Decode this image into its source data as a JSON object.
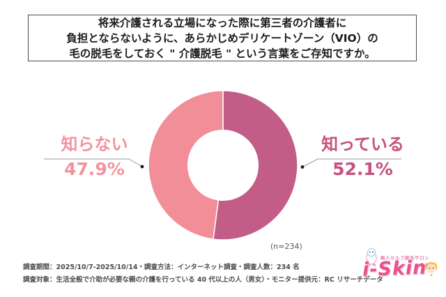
{
  "title": {
    "line1": "将来介護される立場になった際に第三者の介護者に",
    "line2": "負担とならないように、あらかじめデリケートゾーン（VIO）の",
    "line3": "毛の脱毛をしておく \" 介護脱毛 \" という言葉をご存知ですか。"
  },
  "chart_data": {
    "type": "pie",
    "subtype": "donut",
    "title": "将来介護される立場になった際に第三者の介護者に負担とならないように、あらかじめデリケートゾーン（VIO）の毛の脱毛をしておく\"介護脱毛\"という言葉をご存知ですか。",
    "categories": [
      "知っている",
      "知らない"
    ],
    "values": [
      52.1,
      47.9
    ],
    "unit": "%",
    "colors": [
      "#c25d88",
      "#f28e98"
    ],
    "label_colors": [
      "#c4517f",
      "#f2939c"
    ],
    "start_angle_deg": 0,
    "direction": "clockwise",
    "inner_radius_ratio": 0.47,
    "legend_position": "callout-labels",
    "sample_size": 234
  },
  "callouts": {
    "right": {
      "label": "知っている",
      "value": "52.1%"
    },
    "left": {
      "label": "知らない",
      "value": "47.9%"
    }
  },
  "annotation": {
    "n_note": "(n=234)"
  },
  "footer": {
    "line1": "調査期間：2025/10/7-2025/10/14・調査方法：インターネット調査・調査人数：234 名",
    "line2": "調査対象：生活全般で介助が必要な親の介護を行っている 40 代以上の人（男女）・モニター提供元：RC リサーチデータ"
  },
  "logo": {
    "tagline": "無人セルフ脱毛サロン",
    "name": "i-Skin"
  },
  "colors": {
    "segment_know": "#c25d88",
    "segment_dont_know": "#f28e98",
    "label_know": "#c4517f",
    "label_dont_know": "#f2939c",
    "leader_line": "#999999",
    "leader_dot": "#1a1a1a",
    "title_border": "#4a4a4a",
    "footer_text": "#4a4a4a",
    "logo_pink": "#e8518d"
  }
}
